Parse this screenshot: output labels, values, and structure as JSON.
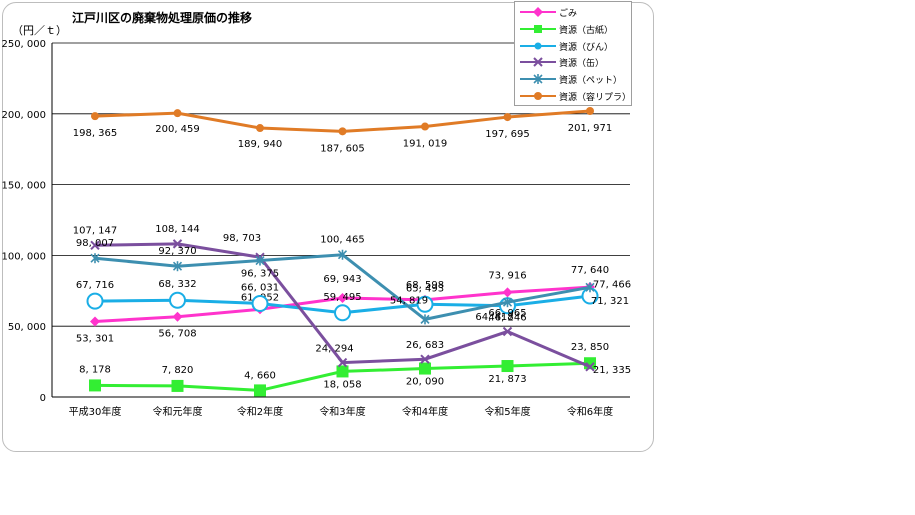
{
  "chart_data": {
    "type": "line",
    "title": "江戸川区の廃棄物処理原価の推移",
    "ylabel": "（円／ｔ）",
    "xlabel": "",
    "ylim": [
      0,
      250000
    ],
    "yticks": [
      0,
      50000,
      100000,
      150000,
      200000,
      250000
    ],
    "ytick_labels": [
      "0",
      "50, 000",
      "100, 000",
      "150, 000",
      "200, 000",
      "250, 000"
    ],
    "categories": [
      "平成30年度",
      "令和元年度",
      "令和2年度",
      "令和3年度",
      "令和4年度",
      "令和5年度",
      "令和6年度"
    ],
    "grid": true,
    "legend_position": "top-right",
    "series": [
      {
        "name": "ごみ",
        "color": "#ff33cc",
        "marker": "diamond",
        "values": [
          53301,
          56708,
          61952,
          69943,
          68598,
          73916,
          77640
        ],
        "labels": [
          "53, 301",
          "56, 708",
          "61, 952",
          "69, 943",
          "68, 598",
          "73, 916",
          "77, 640"
        ]
      },
      {
        "name": "資源（古紙）",
        "color": "#33ee33",
        "marker": "square",
        "values": [
          8178,
          7820,
          4660,
          18058,
          20090,
          21873,
          23850
        ],
        "labels": [
          "8, 178",
          "7, 820",
          "4, 660",
          "18, 058",
          "20, 090",
          "21, 873",
          "23, 850"
        ]
      },
      {
        "name": "資源（びん）",
        "color": "#1aaee6",
        "marker": "circle",
        "values": [
          67716,
          68332,
          66031,
          59495,
          65493,
          64418,
          71321
        ],
        "labels": [
          "67, 716",
          "68, 332",
          "66, 031",
          "59, 495",
          "65, 493",
          "64, 418",
          "71, 321"
        ]
      },
      {
        "name": "資源（缶）",
        "color": "#7b4f9e",
        "marker": "x",
        "values": [
          107147,
          108144,
          98703,
          24294,
          26683,
          46246,
          21335
        ],
        "labels": [
          "107, 147",
          "108, 144",
          "98, 703",
          "24, 294",
          "26, 683",
          "46, 246",
          "21, 335"
        ]
      },
      {
        "name": "資源（ペット）",
        "color": "#3d8fb0",
        "marker": "star",
        "values": [
          98007,
          92370,
          96375,
          100465,
          54819,
          66965,
          77466
        ],
        "labels": [
          "98, 007",
          "92, 370",
          "96, 375",
          "100, 465",
          "54, 819",
          "66, 965",
          "77, 466"
        ]
      },
      {
        "name": "資源（容リプラ）",
        "color": "#e07b26",
        "marker": "circle-filled",
        "values": [
          198365,
          200459,
          189940,
          187605,
          191019,
          197695,
          201971
        ],
        "labels": [
          "198, 365",
          "200, 459",
          "189, 940",
          "187, 605",
          "191, 019",
          "197, 695",
          "201, 971"
        ]
      }
    ]
  }
}
